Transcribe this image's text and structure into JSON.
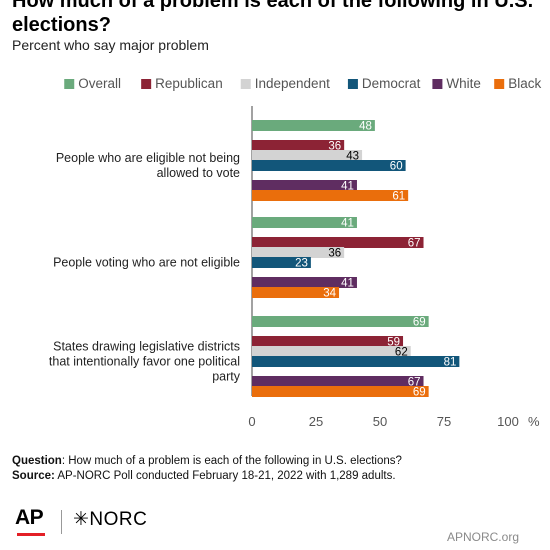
{
  "title": "How much of a problem is each of the following in U.S. elections?",
  "subtitle": "Percent who say major problem",
  "chart_data": {
    "type": "bar",
    "orientation": "horizontal",
    "categories": [
      "People who are eligible not being allowed to vote",
      "People voting who are not eligible",
      "States drawing legislative districts that intentionally favor one political party"
    ],
    "series": [
      {
        "name": "Overall",
        "color": "#6aaa7c",
        "values": [
          48,
          41,
          69
        ]
      },
      {
        "name": "Republican",
        "color": "#8c2335",
        "values": [
          36,
          67,
          59
        ]
      },
      {
        "name": "Independent",
        "color": "#d3d3d3",
        "values": [
          43,
          36,
          62
        ]
      },
      {
        "name": "Democrat",
        "color": "#12567a",
        "values": [
          60,
          23,
          81
        ]
      },
      {
        "name": "White",
        "color": "#5f2d61",
        "values": [
          41,
          41,
          67
        ]
      },
      {
        "name": "Black",
        "color": "#ea6e0c",
        "values": [
          61,
          34,
          69
        ]
      }
    ],
    "label_colors": [
      "#ffffff",
      "#ffffff",
      "#000000",
      "#ffffff",
      "#ffffff",
      "#ffffff"
    ],
    "xlim": [
      0,
      100
    ],
    "xticks": [
      "0",
      "25",
      "50",
      "75",
      "100"
    ],
    "x_unit": "%",
    "legend_position": "top",
    "grid": false
  },
  "notes": {
    "question_label": "Question",
    "question_text": ": How much of a problem is each of the following in U.S. elections?",
    "source_label": "Source:",
    "source_text": " AP-NORC Poll conducted February 18-21, 2022 with 1,289 adults."
  },
  "footer": {
    "ap": "AP",
    "norc": "✳NORC",
    "url": "APNORC.org"
  }
}
